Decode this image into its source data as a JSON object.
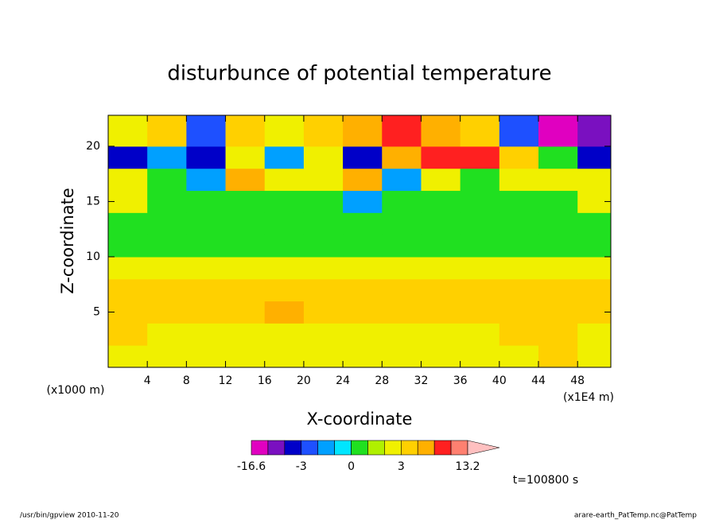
{
  "chart_data": {
    "type": "contour",
    "title": "disturbunce of potential temperature",
    "xlabel": "X-coordinate",
    "ylabel": "Z-coordinate",
    "xunit": "(x1E4 m)",
    "yunit": "(x1000 m)",
    "time_label": "t=100800 s",
    "footer_left": "/usr/bin/gpview  2010-11-20",
    "footer_right": "arare-earth_PatTemp.nc@PatTemp",
    "xlim": [
      0,
      51.4
    ],
    "ylim": [
      0,
      22.8
    ],
    "xticks": [
      4,
      8,
      12,
      16,
      20,
      24,
      28,
      32,
      36,
      40,
      44,
      48
    ],
    "yticks": [
      5,
      10,
      15,
      20
    ],
    "x": [
      0,
      4,
      8,
      12,
      16,
      20,
      24,
      28,
      32,
      36,
      40,
      44,
      48,
      51.4
    ],
    "y": [
      0,
      2,
      4,
      6,
      8,
      10,
      12,
      14,
      16,
      18,
      20,
      22.8
    ],
    "z": [
      [
        2.5,
        2.5,
        2.5,
        2.5,
        2.5,
        2.5,
        2.5,
        2.5,
        2.5,
        2.5,
        2.5,
        3.5,
        2.5
      ],
      [
        3.5,
        2.5,
        2.5,
        2.5,
        2.5,
        2.5,
        2.5,
        2.5,
        2.5,
        2.5,
        3.5,
        3.5,
        2.5
      ],
      [
        3.5,
        3.5,
        3.5,
        3.5,
        4.5,
        3.5,
        3.5,
        3.5,
        3.5,
        3.5,
        3.5,
        3.5,
        3.5
      ],
      [
        3.5,
        3.5,
        3.5,
        3.5,
        3.5,
        3.5,
        3.5,
        3.5,
        3.5,
        3.5,
        3.5,
        3.5,
        3.5
      ],
      [
        2.5,
        2.5,
        2.5,
        2.5,
        2.5,
        2.5,
        2.5,
        2.5,
        2.5,
        2.5,
        2.5,
        2.5,
        2.5
      ],
      [
        0.5,
        0.5,
        0.5,
        0.5,
        0.5,
        0.5,
        0.5,
        0.5,
        0.5,
        0.5,
        0.5,
        0.5,
        0.5
      ],
      [
        0.5,
        0.5,
        0.5,
        0.5,
        0.5,
        0.5,
        0.5,
        0.5,
        0.5,
        0.5,
        0.5,
        0.5,
        0.5
      ],
      [
        2.5,
        0.5,
        0.5,
        0.5,
        0.5,
        0.5,
        -1.5,
        0.5,
        0.5,
        0.5,
        0.5,
        0.5,
        2.5
      ],
      [
        2.5,
        0.5,
        -1.5,
        4.5,
        2.5,
        2.5,
        4.5,
        -1.5,
        2.5,
        0.5,
        2.5,
        2.5,
        2.5
      ],
      [
        -3.5,
        -1.5,
        -3.5,
        2.5,
        -1.5,
        2.5,
        -3.5,
        4.5,
        6,
        5.5,
        3.5,
        0.5,
        -3.5
      ],
      [
        2.5,
        3.5,
        -2.5,
        3.5,
        2.5,
        3.5,
        4.5,
        5.5,
        4.5,
        3.5,
        -2.5,
        -7,
        -5
      ]
    ],
    "levels": [
      -16.6,
      -6,
      -4,
      -3,
      -2,
      -1,
      0,
      1,
      2,
      3,
      4,
      5,
      7,
      13.2
    ],
    "colors": [
      "#e000c0",
      "#7a10c0",
      "#0000c8",
      "#1e50ff",
      "#00a0ff",
      "#00e6ff",
      "#20e020",
      "#b0f000",
      "#f0f000",
      "#ffd000",
      "#ffb000",
      "#ff2020",
      "#ff8070"
    ],
    "extend_color": "#ffc0c0",
    "cticks": [
      -16.6,
      -3,
      0,
      3,
      13.2
    ]
  }
}
